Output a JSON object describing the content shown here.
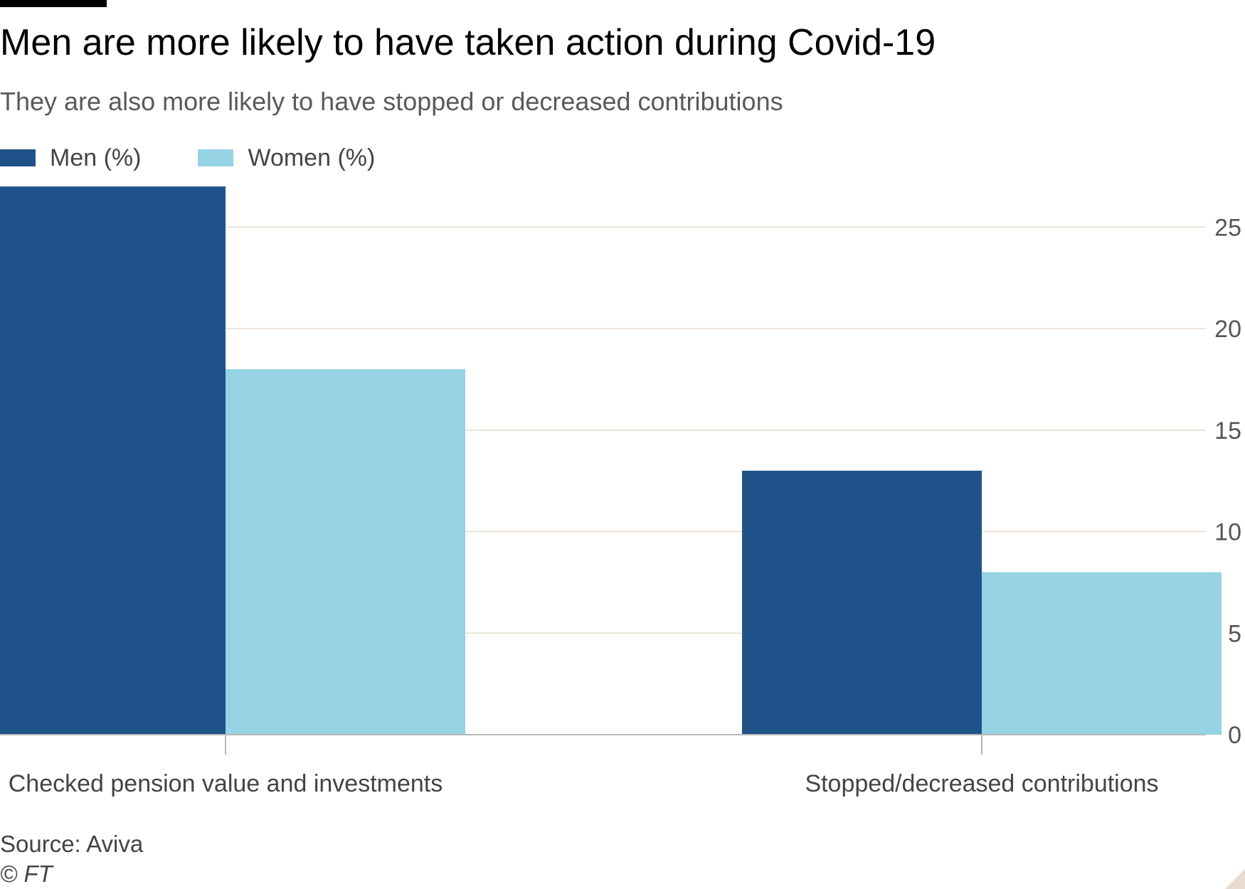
{
  "header": {
    "title": "Men are more likely to have taken action during Covid-19",
    "subtitle": "They are also more likely to have stopped or decreased contributions"
  },
  "legend": [
    {
      "label": "Men (%)",
      "color": "#1f5289"
    },
    {
      "label": "Women (%)",
      "color": "#96d3e5"
    }
  ],
  "footer": {
    "source": "Source: Aviva",
    "copyright": "© FT"
  },
  "chart_data": {
    "type": "bar",
    "title": "Men are more likely to have taken action during Covid-19",
    "subtitle": "They are also more likely to have stopped or decreased contributions",
    "categories": [
      "Checked pension value and investments",
      "Stopped/decreased contributions"
    ],
    "series": [
      {
        "name": "Men (%)",
        "values": [
          27,
          13
        ],
        "color": "#1f5289"
      },
      {
        "name": "Women (%)",
        "values": [
          18,
          8
        ],
        "color": "#96d3e5"
      }
    ],
    "ylim": [
      0,
      27
    ],
    "yticks": [
      0,
      5,
      10,
      15,
      20,
      25
    ],
    "y_axis_position": "right",
    "grid": true,
    "gridline_color": "#e9dccf",
    "legend_position": "top-left",
    "xlabel": "",
    "ylabel": ""
  }
}
